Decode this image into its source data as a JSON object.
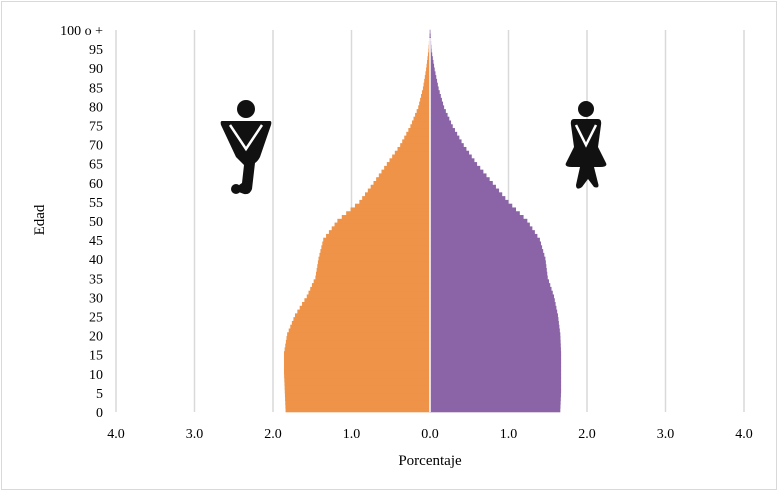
{
  "chart_data": {
    "type": "bar",
    "orientation": "horizontal-population-pyramid",
    "title": "",
    "xlabel": "Porcentaje",
    "ylabel": "Edad",
    "xlim": [
      -4.0,
      4.0
    ],
    "ylim": [
      0,
      100
    ],
    "x_tick_labels": [
      "4.0",
      "3.0",
      "2.0",
      "1.0",
      "0.0",
      "1.0",
      "2.0",
      "3.0",
      "4.0"
    ],
    "x_tick_values": [
      -4,
      -3,
      -2,
      -1,
      0,
      1,
      2,
      3,
      4
    ],
    "y_tick_labels": [
      "0",
      "5",
      "10",
      "15",
      "20",
      "25",
      "30",
      "35",
      "40",
      "45",
      "50",
      "55",
      "60",
      "65",
      "70",
      "75",
      "80",
      "85",
      "90",
      "95",
      "100 o +"
    ],
    "y_tick_values": [
      0,
      5,
      10,
      15,
      20,
      25,
      30,
      35,
      40,
      45,
      50,
      55,
      60,
      65,
      70,
      75,
      80,
      85,
      90,
      95,
      100
    ],
    "grid": "vertical",
    "legend": "pictograms",
    "series": [
      {
        "side": "left",
        "color": "#EE9348",
        "icon": "male-person-icon",
        "ages": [
          0,
          5,
          10,
          15,
          20,
          25,
          30,
          35,
          40,
          45,
          50,
          55,
          60,
          65,
          70,
          75,
          80,
          85,
          90,
          95,
          100
        ],
        "values": [
          1.84,
          1.85,
          1.86,
          1.86,
          1.82,
          1.72,
          1.57,
          1.46,
          1.42,
          1.36,
          1.18,
          0.9,
          0.72,
          0.55,
          0.38,
          0.25,
          0.15,
          0.09,
          0.05,
          0.02,
          0.005
        ]
      },
      {
        "side": "right",
        "color": "#8A64A6",
        "icon": "female-person-icon",
        "ages": [
          0,
          5,
          10,
          15,
          20,
          25,
          30,
          35,
          40,
          45,
          50,
          55,
          60,
          65,
          70,
          75,
          80,
          85,
          90,
          95,
          100
        ],
        "values": [
          1.66,
          1.67,
          1.67,
          1.67,
          1.66,
          1.63,
          1.58,
          1.5,
          1.47,
          1.4,
          1.24,
          1.0,
          0.8,
          0.6,
          0.43,
          0.29,
          0.18,
          0.11,
          0.06,
          0.02,
          0.005
        ]
      }
    ]
  }
}
